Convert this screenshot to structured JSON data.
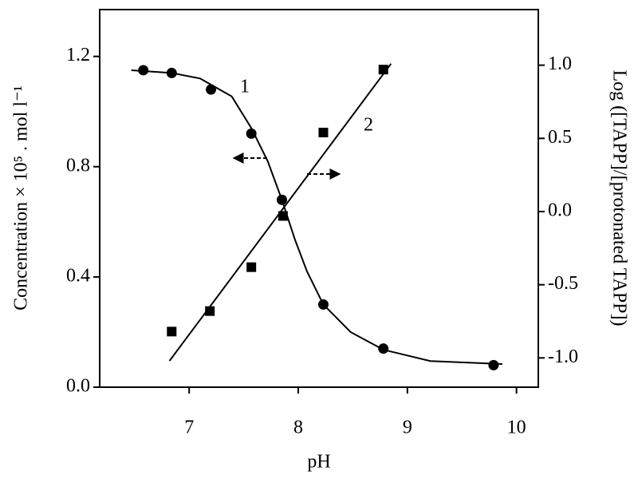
{
  "chart_data": {
    "type": "scatter",
    "x_label": "pH",
    "y_label": "Concentration × 10⁵ . mol l⁻¹",
    "y2_label": "Log ([TAPP]/[protonated TAPP])",
    "xlim": [
      6.18,
      10.2
    ],
    "xticks": [
      7,
      8,
      9,
      10
    ],
    "ylim": [
      0,
      1.37
    ],
    "yticks": [
      {
        "value": 0,
        "label": "0.0"
      },
      {
        "value": 0.4,
        "label": "0.4"
      },
      {
        "value": 0.8,
        "label": "0.8"
      },
      {
        "value": 1.2,
        "label": "1.2"
      }
    ],
    "y2lim": [
      -1.2,
      1.38
    ],
    "y2ticks": [
      {
        "value": -1,
        "label": "-1.0"
      },
      {
        "value": -0.5,
        "label": "-0.5"
      },
      {
        "value": 0,
        "label": "0.0"
      },
      {
        "value": 0.5,
        "label": "0.5"
      },
      {
        "value": 1,
        "label": "1.0"
      }
    ],
    "series": [
      {
        "name": "1",
        "marker": "circle",
        "color": "#000000",
        "axis": "y",
        "x": [
          6.58,
          6.84,
          7.2,
          7.57,
          7.85,
          8.23,
          8.78,
          9.79
        ],
        "values": [
          1.15,
          1.14,
          1.08,
          0.92,
          0.68,
          0.3,
          0.14,
          0.08
        ],
        "fit_x": [
          6.47,
          6.84,
          7.1,
          7.39,
          7.57,
          7.72,
          7.85,
          7.97,
          8.08,
          8.23,
          8.48,
          8.78,
          9.21,
          9.87
        ],
        "fit_values": [
          1.15,
          1.14,
          1.12,
          1.055,
          0.94,
          0.82,
          0.68,
          0.535,
          0.42,
          0.3,
          0.2,
          0.136,
          0.095,
          0.084
        ]
      },
      {
        "name": "2",
        "marker": "square",
        "color": "#000000",
        "axis": "y2",
        "x": [
          6.84,
          7.19,
          7.57,
          7.86,
          8.23,
          8.78
        ],
        "values": [
          -0.82,
          -0.68,
          -0.38,
          -0.03,
          0.54,
          0.97
        ],
        "fit_x": [
          6.82,
          8.85
        ],
        "fit_values": [
          -1.02,
          1.01
        ]
      }
    ]
  }
}
